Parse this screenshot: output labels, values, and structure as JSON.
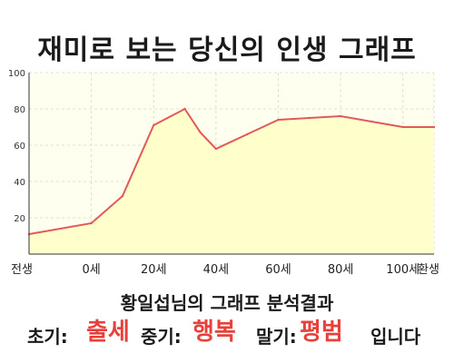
{
  "title": "재미로 보는 당신의 인생 그래프",
  "result": {
    "heading": "황일섭님의 그래프 분석결과",
    "early_label": "초기:",
    "early_value": "출세",
    "middle_label": "중기:",
    "middle_value": "행복",
    "late_label": "말기:",
    "late_value": "평범",
    "suffix": "입니다"
  },
  "colors": {
    "fill": "#ffffcc",
    "line": "#e05a5a",
    "accent": "#e8403a",
    "axis": "#333333",
    "grid": "#e0e0c8"
  },
  "chart_data": {
    "type": "area",
    "categories": [
      "전생",
      "0세",
      "20세",
      "40세",
      "60세",
      "80세",
      "100세",
      "환생"
    ],
    "x": [
      -20,
      0,
      10,
      20,
      30,
      35,
      40,
      50,
      60,
      70,
      80,
      90,
      100,
      110
    ],
    "values": [
      11,
      17,
      32,
      71,
      80,
      67,
      58,
      66,
      74,
      75,
      76,
      73,
      70,
      70
    ],
    "y_ticks": [
      20,
      40,
      60,
      80,
      100
    ],
    "ylim": [
      0,
      100
    ],
    "grid": true,
    "legend": "none"
  }
}
